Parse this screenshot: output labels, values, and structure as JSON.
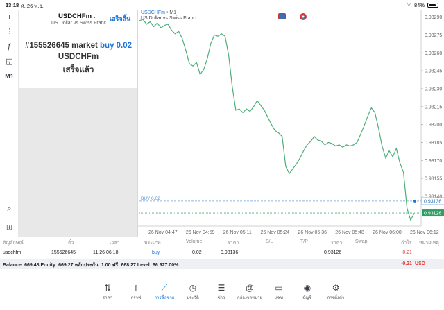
{
  "statusbar": {
    "time": "13:18",
    "date": "ศ. 26 พ.ย.",
    "battery": "84%"
  },
  "left_tools": [
    {
      "name": "crosshair-icon",
      "glyph": "+"
    },
    {
      "name": "indicators-icon",
      "glyph": "⫶"
    },
    {
      "name": "function-icon",
      "glyph": "ƒ"
    },
    {
      "name": "objects-icon",
      "glyph": "◱"
    },
    {
      "name": "timeframe",
      "label": "M1"
    },
    {
      "name": "zoom-icon",
      "glyph": "⌕"
    },
    {
      "name": "new-order-icon",
      "glyph": "⊞"
    }
  ],
  "trade_panel": {
    "symbol": "USDCHFm",
    "description": "US Dollar vs Swiss Franc",
    "done_label": "เสร็จสิ้น",
    "order_prefix": "#155526645 market",
    "order_side": "buy 0.02",
    "order_symbol": "USDCHFm",
    "status": "เสร็จแล้ว"
  },
  "chart": {
    "title": "USDCHFm",
    "timeframe": "• M1",
    "subtitle": "US Dollar vs Swiss Franc",
    "buy_line_label": "BUY 0.02",
    "buy_price": "0.93136",
    "current_price": "0.93126",
    "price_ticks": [
      "0.93290",
      "0.93275",
      "0.93260",
      "0.93245",
      "0.93230",
      "0.93215",
      "0.93200",
      "0.93185",
      "0.93170",
      "0.93155",
      "0.93140"
    ],
    "time_ticks": [
      "26 Nov 04:47",
      "26 Nov 04:59",
      "26 Nov 05:11",
      "26 Nov 05:24",
      "26 Nov 05:36",
      "26 Nov 05:48",
      "26 Nov 06:00",
      "26 Nov 06:12"
    ]
  },
  "chart_data": {
    "type": "line",
    "ylim": [
      0.93115,
      0.93295
    ],
    "values": [
      0.93287,
      0.93288,
      0.93284,
      0.93286,
      0.93282,
      0.93285,
      0.93281,
      0.93283,
      0.93284,
      0.93279,
      0.93276,
      0.93278,
      0.93272,
      0.93262,
      0.93251,
      0.93249,
      0.93252,
      0.93242,
      0.93246,
      0.93255,
      0.93268,
      0.93275,
      0.93274,
      0.93276,
      0.93274,
      0.93258,
      0.93232,
      0.93212,
      0.93213,
      0.9321,
      0.93213,
      0.93211,
      0.93215,
      0.9322,
      0.93216,
      0.93212,
      0.93206,
      0.932,
      0.93195,
      0.93193,
      0.9319,
      0.93165,
      0.93159,
      0.93163,
      0.93167,
      0.93172,
      0.93178,
      0.93183,
      0.93186,
      0.9319,
      0.93187,
      0.93186,
      0.93183,
      0.93185,
      0.93184,
      0.93182,
      0.93183,
      0.93181,
      0.93183,
      0.93182,
      0.93183,
      0.93185,
      0.93192,
      0.93199,
      0.93207,
      0.93214,
      0.9321,
      0.93197,
      0.93182,
      0.93172,
      0.93178,
      0.93173,
      0.9318,
      0.93168,
      0.9316,
      0.9313,
      0.9312,
      0.93126
    ]
  },
  "table": {
    "headers": [
      "สัญลักษณ์",
      "ตั๋ว",
      "เวลา",
      "ประเภท",
      "Volume",
      "ราคา",
      "S/L",
      "T/P",
      "ราคา",
      "Swap",
      "กำไร",
      "หมายเหตุ"
    ],
    "row": {
      "symbol": "usdchfm",
      "ticket": "155526645",
      "time": "11.26 06:18",
      "type": "buy",
      "volume": "0.02",
      "open_price": "0.93136",
      "price": "0.93126",
      "profit": "-0.21"
    }
  },
  "balance": {
    "text": "Balance: 669.48 Equity: 669.27 หลักประกัน: 1.00 ฟรี: 668.27 Level: 66 927.00%",
    "profit": "-0.21",
    "currency": "USD"
  },
  "nav": [
    {
      "name": "nav-quotes",
      "icon": "⇅",
      "label": "ราคา"
    },
    {
      "name": "nav-chart",
      "icon": "⫾",
      "label": "กราฟ"
    },
    {
      "name": "nav-trade",
      "icon": "⟋",
      "label": "การซื้อขาย"
    },
    {
      "name": "nav-history",
      "icon": "◷",
      "label": "ประวัติ"
    },
    {
      "name": "nav-news",
      "icon": "☰",
      "label": "ข่าว"
    },
    {
      "name": "nav-mailbox",
      "icon": "@",
      "label": "กล่องจดหมาย"
    },
    {
      "name": "nav-chat",
      "icon": "▭",
      "label": "แชท"
    },
    {
      "name": "nav-accounts",
      "icon": "◉",
      "label": "บัญชี"
    },
    {
      "name": "nav-settings",
      "icon": "⚙",
      "label": "การตั้งค่า"
    }
  ],
  "colors": {
    "accent": "#1a73d9",
    "line": "#4caf7a",
    "negative": "#e53935"
  }
}
